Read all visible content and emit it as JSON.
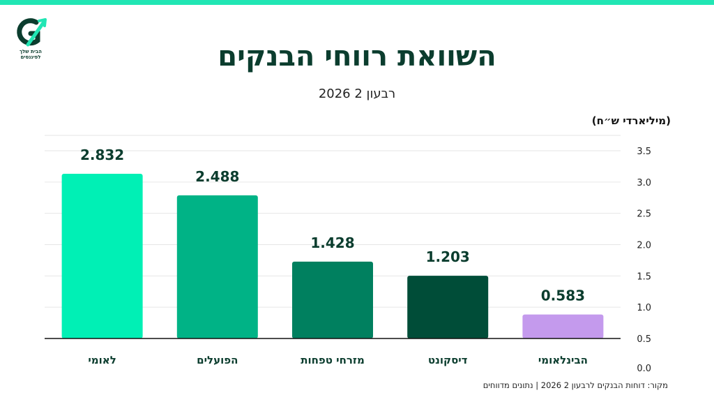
{
  "brand": {
    "logo_text": "הבית שלך לפיננסים",
    "accent": "#21e6b4"
  },
  "header": {
    "title": "השוואת רווחי הבנקים",
    "subtitle": "רבעון 2 2026"
  },
  "chart_data": {
    "type": "bar",
    "title": "השוואת רווחי הבנקים",
    "subtitle": "רבעון 2 2026",
    "ylabel": "(מיליארדי ש״ח)",
    "categories": [
      "לאומי",
      "הפועלים",
      "מזרחי טפחות",
      "דיסקונט",
      "הבינלאומי"
    ],
    "values": [
      2.832,
      2.488,
      1.428,
      1.203,
      0.583
    ],
    "value_labels": [
      "2.832",
      "2.488",
      "1.428",
      "1.203",
      "0.583"
    ],
    "colors": [
      "#00f0b5",
      "#00b386",
      "#00805f",
      "#004d38",
      "#c49aed"
    ],
    "y_ticks": [
      "0.0",
      "0.5",
      "1.0",
      "1.5",
      "2.0",
      "2.5",
      "3.0",
      "3.5"
    ],
    "ylim": [
      0,
      3.5
    ],
    "grid": true,
    "y_axis_side": "right"
  },
  "footer": {
    "source": "מקור: דוחות הבנקים לרבעון 2 2026 | נתונים מדווחים"
  }
}
